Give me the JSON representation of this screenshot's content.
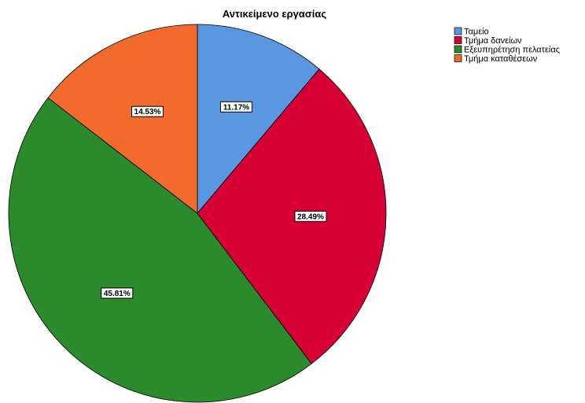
{
  "chart_data": {
    "type": "pie",
    "title": "Αντικείμενο εργασίας",
    "legend_position": "top-right",
    "slices": [
      {
        "label": "Ταμείο",
        "value": 11.17,
        "display": "11.17%",
        "color": "#5a97e3"
      },
      {
        "label": "Τμήμα δανείων",
        "value": 28.49,
        "display": "28.49%",
        "color": "#d60034"
      },
      {
        "label": "Εξευπηρέτηση πελατείας",
        "value": 45.81,
        "display": "45.81%",
        "color": "#2b8a2b"
      },
      {
        "label": "Τμήμα καταθέσεων",
        "value": 14.53,
        "display": "14.53%",
        "color": "#f26a2c"
      }
    ]
  }
}
